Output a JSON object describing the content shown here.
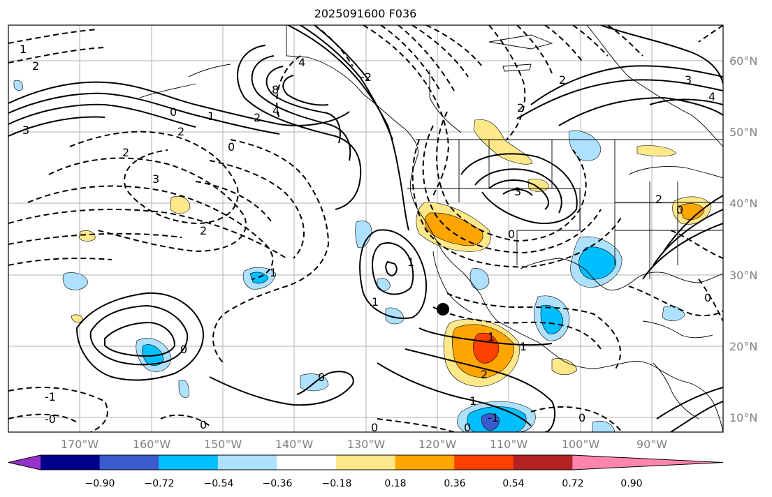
{
  "title": "2025091600 F036",
  "lat_labels": [
    "60°N",
    "50°N",
    "40°N",
    "30°N",
    "20°N",
    "10°N"
  ],
  "lon_labels": [
    "170°W",
    "160°W",
    "150°W",
    "140°W",
    "130°W",
    "120°W",
    "110°W",
    "100°W",
    "90°W"
  ],
  "colorbar": {
    "colors": [
      "#9932CC",
      "#00008B",
      "#3A5BCD",
      "#00BFFF",
      "#ADE1FF",
      "#FFFFFF",
      "#FFE88A",
      "#FFA500",
      "#FF3F00",
      "#B22222",
      "#FF85B0"
    ],
    "ticks": [
      "−0.90",
      "−0.72",
      "−0.54",
      "−0.36",
      "−0.18",
      "0.18",
      "0.36",
      "0.54",
      "0.72",
      "0.90"
    ]
  },
  "contour_labels": [
    "2",
    "1",
    "3",
    "0",
    "1",
    "2",
    "4",
    "8",
    "4",
    "2",
    "2",
    "3",
    "2",
    "0",
    "1",
    "1",
    "1",
    "0",
    "0",
    "0",
    "-1",
    "-0",
    "0",
    "1",
    "2",
    "-1",
    "1",
    "0",
    "0",
    "1",
    "3",
    "2",
    "0",
    "2",
    "4",
    "3",
    "2",
    "0",
    "0",
    "-2"
  ],
  "marker": "black-dot"
}
